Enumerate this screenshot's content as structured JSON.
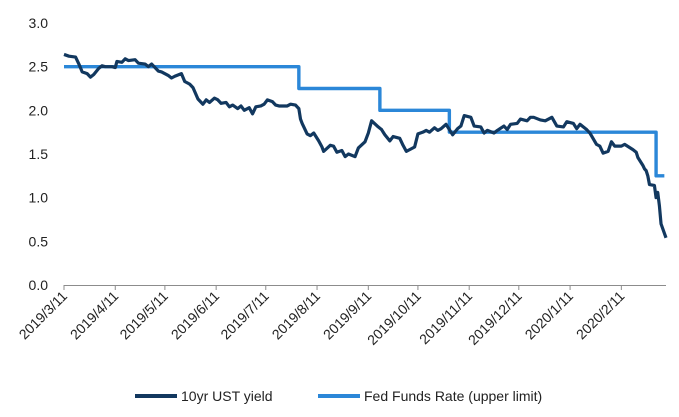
{
  "chart_data": {
    "type": "line",
    "title": "",
    "xlabel": "",
    "ylabel": "",
    "ylim": [
      0,
      3.0
    ],
    "yticks": [
      "0.0",
      "0.5",
      "1.0",
      "1.5",
      "2.0",
      "2.5",
      "3.0"
    ],
    "xlim": [
      "2019-03-11",
      "2020-03-09"
    ],
    "xticks": [
      {
        "date": "2019-03-11",
        "label": "2019/3/11"
      },
      {
        "date": "2019-04-11",
        "label": "2019/4/11"
      },
      {
        "date": "2019-05-11",
        "label": "2019/5/11"
      },
      {
        "date": "2019-06-11",
        "label": "2019/6/11"
      },
      {
        "date": "2019-07-11",
        "label": "2019/7/11"
      },
      {
        "date": "2019-08-11",
        "label": "2019/8/11"
      },
      {
        "date": "2019-09-11",
        "label": "2019/9/11"
      },
      {
        "date": "2019-10-11",
        "label": "2019/10/11"
      },
      {
        "date": "2019-11-11",
        "label": "2019/11/11"
      },
      {
        "date": "2019-12-11",
        "label": "2019/12/11"
      },
      {
        "date": "2020-01-11",
        "label": "2020/1/11"
      },
      {
        "date": "2020-02-11",
        "label": "2020/2/11"
      }
    ],
    "grid": false,
    "legend": "bottom-center",
    "series": [
      {
        "name": "10yr UST yield",
        "color": "#12385f",
        "step": false,
        "points": [
          [
            "2019-03-11",
            2.64
          ],
          [
            "2019-03-14",
            2.62
          ],
          [
            "2019-03-18",
            2.61
          ],
          [
            "2019-03-20",
            2.53
          ],
          [
            "2019-03-22",
            2.44
          ],
          [
            "2019-03-25",
            2.42
          ],
          [
            "2019-03-27",
            2.38
          ],
          [
            "2019-03-29",
            2.41
          ],
          [
            "2019-04-01",
            2.48
          ],
          [
            "2019-04-03",
            2.51
          ],
          [
            "2019-04-05",
            2.5
          ],
          [
            "2019-04-09",
            2.5
          ],
          [
            "2019-04-11",
            2.49
          ],
          [
            "2019-04-12",
            2.56
          ],
          [
            "2019-04-15",
            2.55
          ],
          [
            "2019-04-17",
            2.59
          ],
          [
            "2019-04-19",
            2.57
          ],
          [
            "2019-04-23",
            2.58
          ],
          [
            "2019-04-25",
            2.54
          ],
          [
            "2019-04-29",
            2.53
          ],
          [
            "2019-05-01",
            2.5
          ],
          [
            "2019-05-03",
            2.53
          ],
          [
            "2019-05-07",
            2.45
          ],
          [
            "2019-05-09",
            2.44
          ],
          [
            "2019-05-13",
            2.4
          ],
          [
            "2019-05-15",
            2.37
          ],
          [
            "2019-05-17",
            2.39
          ],
          [
            "2019-05-21",
            2.42
          ],
          [
            "2019-05-23",
            2.33
          ],
          [
            "2019-05-26",
            2.3
          ],
          [
            "2019-05-28",
            2.26
          ],
          [
            "2019-05-31",
            2.13
          ],
          [
            "2019-06-03",
            2.07
          ],
          [
            "2019-06-05",
            2.12
          ],
          [
            "2019-06-07",
            2.09
          ],
          [
            "2019-06-10",
            2.14
          ],
          [
            "2019-06-12",
            2.12
          ],
          [
            "2019-06-14",
            2.08
          ],
          [
            "2019-06-17",
            2.09
          ],
          [
            "2019-06-19",
            2.04
          ],
          [
            "2019-06-21",
            2.06
          ],
          [
            "2019-06-24",
            2.02
          ],
          [
            "2019-06-26",
            2.05
          ],
          [
            "2019-06-28",
            2.0
          ],
          [
            "2019-07-01",
            2.03
          ],
          [
            "2019-07-03",
            1.96
          ],
          [
            "2019-07-05",
            2.04
          ],
          [
            "2019-07-08",
            2.05
          ],
          [
            "2019-07-10",
            2.07
          ],
          [
            "2019-07-12",
            2.12
          ],
          [
            "2019-07-15",
            2.1
          ],
          [
            "2019-07-17",
            2.06
          ],
          [
            "2019-07-19",
            2.05
          ],
          [
            "2019-07-22",
            2.05
          ],
          [
            "2019-07-24",
            2.05
          ],
          [
            "2019-07-26",
            2.07
          ],
          [
            "2019-07-29",
            2.06
          ],
          [
            "2019-07-31",
            2.02
          ],
          [
            "2019-08-01",
            1.9
          ],
          [
            "2019-08-02",
            1.85
          ],
          [
            "2019-08-05",
            1.73
          ],
          [
            "2019-08-07",
            1.71
          ],
          [
            "2019-08-09",
            1.74
          ],
          [
            "2019-08-12",
            1.65
          ],
          [
            "2019-08-14",
            1.58
          ],
          [
            "2019-08-15",
            1.53
          ],
          [
            "2019-08-19",
            1.6
          ],
          [
            "2019-08-21",
            1.59
          ],
          [
            "2019-08-23",
            1.52
          ],
          [
            "2019-08-26",
            1.54
          ],
          [
            "2019-08-28",
            1.47
          ],
          [
            "2019-08-30",
            1.5
          ],
          [
            "2019-09-03",
            1.47
          ],
          [
            "2019-09-05",
            1.57
          ],
          [
            "2019-09-09",
            1.64
          ],
          [
            "2019-09-11",
            1.74
          ],
          [
            "2019-09-13",
            1.88
          ],
          [
            "2019-09-17",
            1.81
          ],
          [
            "2019-09-19",
            1.78
          ],
          [
            "2019-09-21",
            1.72
          ],
          [
            "2019-09-24",
            1.65
          ],
          [
            "2019-09-26",
            1.7
          ],
          [
            "2019-09-30",
            1.68
          ],
          [
            "2019-10-02",
            1.6
          ],
          [
            "2019-10-04",
            1.53
          ],
          [
            "2019-10-07",
            1.56
          ],
          [
            "2019-10-09",
            1.58
          ],
          [
            "2019-10-11",
            1.73
          ],
          [
            "2019-10-14",
            1.75
          ],
          [
            "2019-10-16",
            1.77
          ],
          [
            "2019-10-18",
            1.75
          ],
          [
            "2019-10-21",
            1.8
          ],
          [
            "2019-10-23",
            1.77
          ],
          [
            "2019-10-25",
            1.79
          ],
          [
            "2019-10-28",
            1.84
          ],
          [
            "2019-10-30",
            1.78
          ],
          [
            "2019-11-01",
            1.72
          ],
          [
            "2019-11-04",
            1.79
          ],
          [
            "2019-11-06",
            1.82
          ],
          [
            "2019-11-08",
            1.94
          ],
          [
            "2019-11-12",
            1.92
          ],
          [
            "2019-11-14",
            1.82
          ],
          [
            "2019-11-18",
            1.81
          ],
          [
            "2019-11-20",
            1.74
          ],
          [
            "2019-11-22",
            1.77
          ],
          [
            "2019-11-26",
            1.74
          ],
          [
            "2019-11-28",
            1.77
          ],
          [
            "2019-12-02",
            1.82
          ],
          [
            "2019-12-04",
            1.78
          ],
          [
            "2019-12-06",
            1.84
          ],
          [
            "2019-12-10",
            1.85
          ],
          [
            "2019-12-12",
            1.9
          ],
          [
            "2019-12-16",
            1.88
          ],
          [
            "2019-12-18",
            1.92
          ],
          [
            "2019-12-20",
            1.92
          ],
          [
            "2019-12-24",
            1.89
          ],
          [
            "2019-12-27",
            1.88
          ],
          [
            "2019-12-31",
            1.92
          ],
          [
            "2020-01-03",
            1.82
          ],
          [
            "2020-01-07",
            1.81
          ],
          [
            "2020-01-09",
            1.87
          ],
          [
            "2020-01-13",
            1.85
          ],
          [
            "2020-01-15",
            1.79
          ],
          [
            "2020-01-17",
            1.84
          ],
          [
            "2020-01-21",
            1.78
          ],
          [
            "2020-01-23",
            1.74
          ],
          [
            "2020-01-27",
            1.61
          ],
          [
            "2020-01-29",
            1.59
          ],
          [
            "2020-01-31",
            1.51
          ],
          [
            "2020-02-03",
            1.53
          ],
          [
            "2020-02-05",
            1.64
          ],
          [
            "2020-02-07",
            1.59
          ],
          [
            "2020-02-11",
            1.59
          ],
          [
            "2020-02-13",
            1.61
          ],
          [
            "2020-02-18",
            1.55
          ],
          [
            "2020-02-20",
            1.52
          ],
          [
            "2020-02-21",
            1.46
          ],
          [
            "2020-02-24",
            1.37
          ],
          [
            "2020-02-25",
            1.33
          ],
          [
            "2020-02-26",
            1.31
          ],
          [
            "2020-02-27",
            1.25
          ],
          [
            "2020-02-28",
            1.15
          ],
          [
            "2020-03-02",
            1.14
          ],
          [
            "2020-03-03",
            1.0
          ],
          [
            "2020-03-04",
            1.06
          ],
          [
            "2020-03-05",
            0.91
          ],
          [
            "2020-03-06",
            0.7
          ],
          [
            "2020-03-09",
            0.54
          ]
        ]
      },
      {
        "name": "Fed Funds Rate (upper limit)",
        "color": "#2b87d8",
        "step": true,
        "points": [
          [
            "2019-03-11",
            2.5
          ],
          [
            "2019-07-31",
            2.5
          ],
          [
            "2019-07-31",
            2.25
          ],
          [
            "2019-09-18",
            2.25
          ],
          [
            "2019-09-18",
            2.0
          ],
          [
            "2019-10-30",
            2.0
          ],
          [
            "2019-10-30",
            1.75
          ],
          [
            "2020-03-03",
            1.75
          ],
          [
            "2020-03-03",
            1.25
          ],
          [
            "2020-03-08",
            1.25
          ]
        ]
      }
    ]
  }
}
